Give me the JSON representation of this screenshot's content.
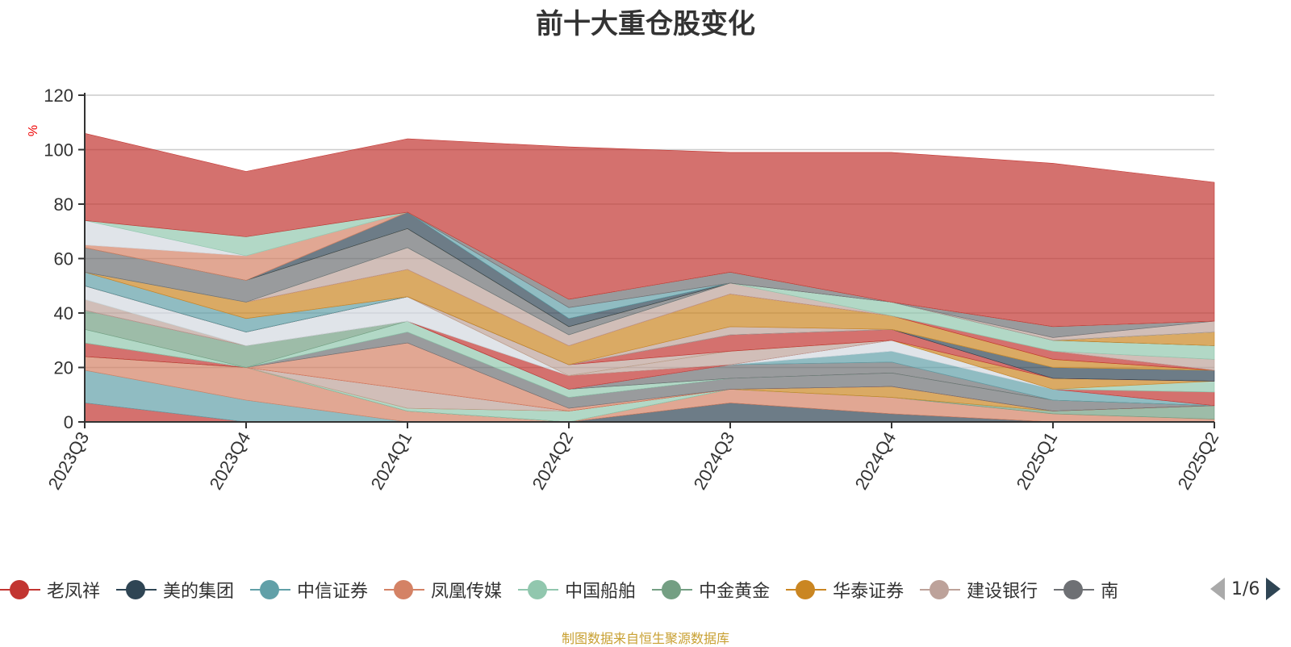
{
  "title": "前十大重仓股变化",
  "source_note": "制图数据来自恒生聚源数据库",
  "pagination": {
    "text": "1/6"
  },
  "legend": [
    {
      "name": "老凤祥",
      "color": "#c23531"
    },
    {
      "name": "美的集团",
      "color": "#2f4554"
    },
    {
      "name": "中信证券",
      "color": "#61a0a8"
    },
    {
      "name": "凤凰传媒",
      "color": "#d48265"
    },
    {
      "name": "中国船舶",
      "color": "#91c7ae"
    },
    {
      "name": "中金黄金",
      "color": "#749f83"
    },
    {
      "name": "华泰证券",
      "color": "#ca8622"
    },
    {
      "name": "建设银行",
      "color": "#bda29a"
    },
    {
      "name": "南",
      "color": "#6e7074"
    }
  ],
  "chart_data": {
    "type": "area",
    "ylabel": "%",
    "ylim": [
      0,
      120
    ],
    "yticks": [
      0,
      20,
      40,
      60,
      80,
      100,
      120
    ],
    "grid": true,
    "categories": [
      "2023Q3",
      "2023Q4",
      "2024Q1",
      "2024Q2",
      "2024Q3",
      "2024Q4",
      "2025Q1",
      "2025Q2"
    ],
    "legend_position": "bottom",
    "stacked_bands": [
      {
        "color": "#c23531",
        "values": [
          7,
          0,
          0,
          0,
          0,
          0,
          0,
          0
        ]
      },
      {
        "color": "#61a0a8",
        "values": [
          12,
          8,
          0,
          0,
          0,
          0,
          0,
          0
        ]
      },
      {
        "color": "#d48265",
        "values": [
          5,
          12,
          4,
          0,
          0,
          0,
          0,
          0
        ]
      },
      {
        "color": "#2f4554",
        "values": [
          0,
          0,
          0,
          0,
          7,
          3,
          0,
          0
        ]
      },
      {
        "color": "#d48265",
        "values": [
          0,
          0,
          0,
          0,
          5,
          6,
          3,
          1
        ]
      },
      {
        "color": "#749f83",
        "values": [
          0,
          0,
          0,
          0,
          0,
          0,
          1,
          5
        ]
      },
      {
        "color": "#91c7ae",
        "values": [
          0,
          0,
          1,
          4,
          0,
          0,
          0,
          0
        ]
      },
      {
        "color": "#ca8622",
        "values": [
          0,
          0,
          0,
          0,
          0,
          4,
          0,
          0
        ]
      },
      {
        "color": "#bda29a",
        "values": [
          0,
          0,
          7,
          0,
          0,
          0,
          0,
          0
        ]
      },
      {
        "color": "#c23531",
        "values": [
          5,
          0,
          0,
          0,
          0,
          0,
          0,
          0
        ]
      },
      {
        "color": "#d48265",
        "values": [
          0,
          0,
          17,
          1,
          0,
          0,
          0,
          0
        ]
      },
      {
        "color": "#6e7074",
        "values": [
          0,
          0,
          4,
          4,
          4,
          5,
          4,
          0
        ]
      },
      {
        "color": "#91c7ae",
        "values": [
          5,
          0,
          4,
          3,
          0,
          0,
          0,
          0
        ]
      },
      {
        "color": "#749f83",
        "values": [
          7,
          8,
          0,
          0,
          0,
          0,
          0,
          0
        ]
      },
      {
        "color": "#6e7074",
        "values": [
          0,
          0,
          0,
          0,
          5,
          4,
          0,
          0
        ]
      },
      {
        "color": "#61a0a8",
        "values": [
          0,
          0,
          0,
          0,
          0,
          4,
          4,
          0
        ]
      },
      {
        "color": "#d3d9e0",
        "values": [
          0,
          0,
          0,
          0,
          0,
          4,
          0,
          0
        ]
      },
      {
        "color": "#c23531",
        "values": [
          0,
          0,
          0,
          5,
          0,
          0,
          0,
          5
        ]
      },
      {
        "color": "#bda29a",
        "values": [
          4,
          0,
          0,
          0,
          5,
          0,
          0,
          0
        ]
      },
      {
        "color": "#91c7ae",
        "values": [
          0,
          0,
          0,
          0,
          0,
          0,
          0,
          4
        ]
      },
      {
        "color": "#d3d9e0",
        "values": [
          5,
          5,
          9,
          0,
          0,
          0,
          0,
          0
        ]
      },
      {
        "color": "#ca8622",
        "values": [
          0,
          0,
          0,
          0,
          0,
          0,
          4,
          0
        ]
      },
      {
        "color": "#bda29a",
        "values": [
          0,
          0,
          0,
          4,
          0,
          0,
          0,
          0
        ]
      },
      {
        "color": "#c23531",
        "values": [
          0,
          0,
          0,
          0,
          6,
          4,
          0,
          0
        ]
      },
      {
        "color": "#2f4554",
        "values": [
          0,
          0,
          0,
          0,
          0,
          0,
          4,
          4
        ]
      },
      {
        "color": "#61a0a8",
        "values": [
          5,
          5,
          0,
          0,
          0,
          0,
          0,
          0
        ]
      },
      {
        "color": "#bda29a",
        "values": [
          0,
          0,
          0,
          0,
          3,
          0,
          0,
          0
        ]
      },
      {
        "color": "#ca8622",
        "values": [
          0,
          6,
          10,
          7,
          12,
          5,
          3,
          0
        ]
      },
      {
        "color": "#c23531",
        "values": [
          0,
          0,
          0,
          0,
          0,
          0,
          3,
          0
        ]
      },
      {
        "color": "#bda29a",
        "values": [
          0,
          0,
          8,
          4,
          4,
          0,
          0,
          4
        ]
      },
      {
        "color": "#91c7ae",
        "values": [
          0,
          0,
          0,
          0,
          0,
          5,
          4,
          5
        ]
      },
      {
        "color": "#6e7074",
        "values": [
          9,
          8,
          7,
          3,
          0,
          0,
          0,
          0
        ]
      },
      {
        "color": "#ca8622",
        "values": [
          0,
          0,
          0,
          0,
          0,
          0,
          0,
          5
        ]
      },
      {
        "color": "#2f4554",
        "values": [
          0,
          0,
          6,
          3,
          0,
          0,
          0,
          0
        ]
      },
      {
        "color": "#61a0a8",
        "values": [
          0,
          0,
          0,
          4,
          0,
          0,
          0,
          0
        ]
      },
      {
        "color": "#bda29a",
        "values": [
          0,
          0,
          0,
          0,
          0,
          0,
          1,
          4
        ]
      },
      {
        "color": "#6e7074",
        "values": [
          0,
          0,
          0,
          3,
          4,
          0,
          4,
          0
        ]
      },
      {
        "color": "#d48265",
        "values": [
          1,
          9,
          0,
          0,
          0,
          0,
          0,
          0
        ]
      },
      {
        "color": "#d3d9e0",
        "values": [
          9,
          0,
          0,
          0,
          0,
          0,
          0,
          0
        ]
      },
      {
        "color": "#91c7ae",
        "values": [
          0,
          7,
          0,
          0,
          0,
          0,
          0,
          0
        ]
      },
      {
        "color": "#c23531",
        "values": [
          32,
          24,
          27,
          56,
          44,
          55,
          60,
          51
        ]
      }
    ]
  }
}
